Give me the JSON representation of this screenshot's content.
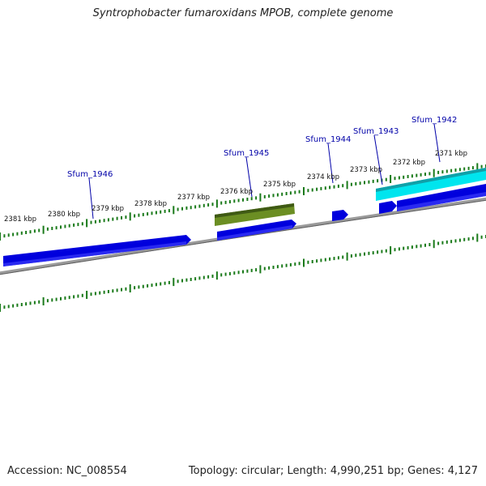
{
  "title": "Syntrophobacter fumaroxidans MPOB, complete genome",
  "footer": {
    "accession": "Accession: NC_008554",
    "topology": "Topology: circular; Length: 4,990,251 bp; Genes: 4,127"
  },
  "colors": {
    "backbone": "#808080",
    "tick": "#1a7a1a",
    "gene_blue": "#0000dd",
    "gene_olive": "#6b8e23",
    "gene_cyan": "#00e5ee",
    "label": "#0000a8"
  },
  "scale_labels": [
    "2381 kbp",
    "2380 kbp",
    "2379 kbp",
    "2378 kbp",
    "2377 kbp",
    "2376 kbp",
    "2375 kbp",
    "2374 kbp",
    "2373 kbp",
    "2372 kbp",
    "2371 kbp"
  ],
  "gene_labels": [
    "Sfum_1946",
    "Sfum_1945",
    "Sfum_1944",
    "Sfum_1943",
    "Sfum_1942"
  ]
}
